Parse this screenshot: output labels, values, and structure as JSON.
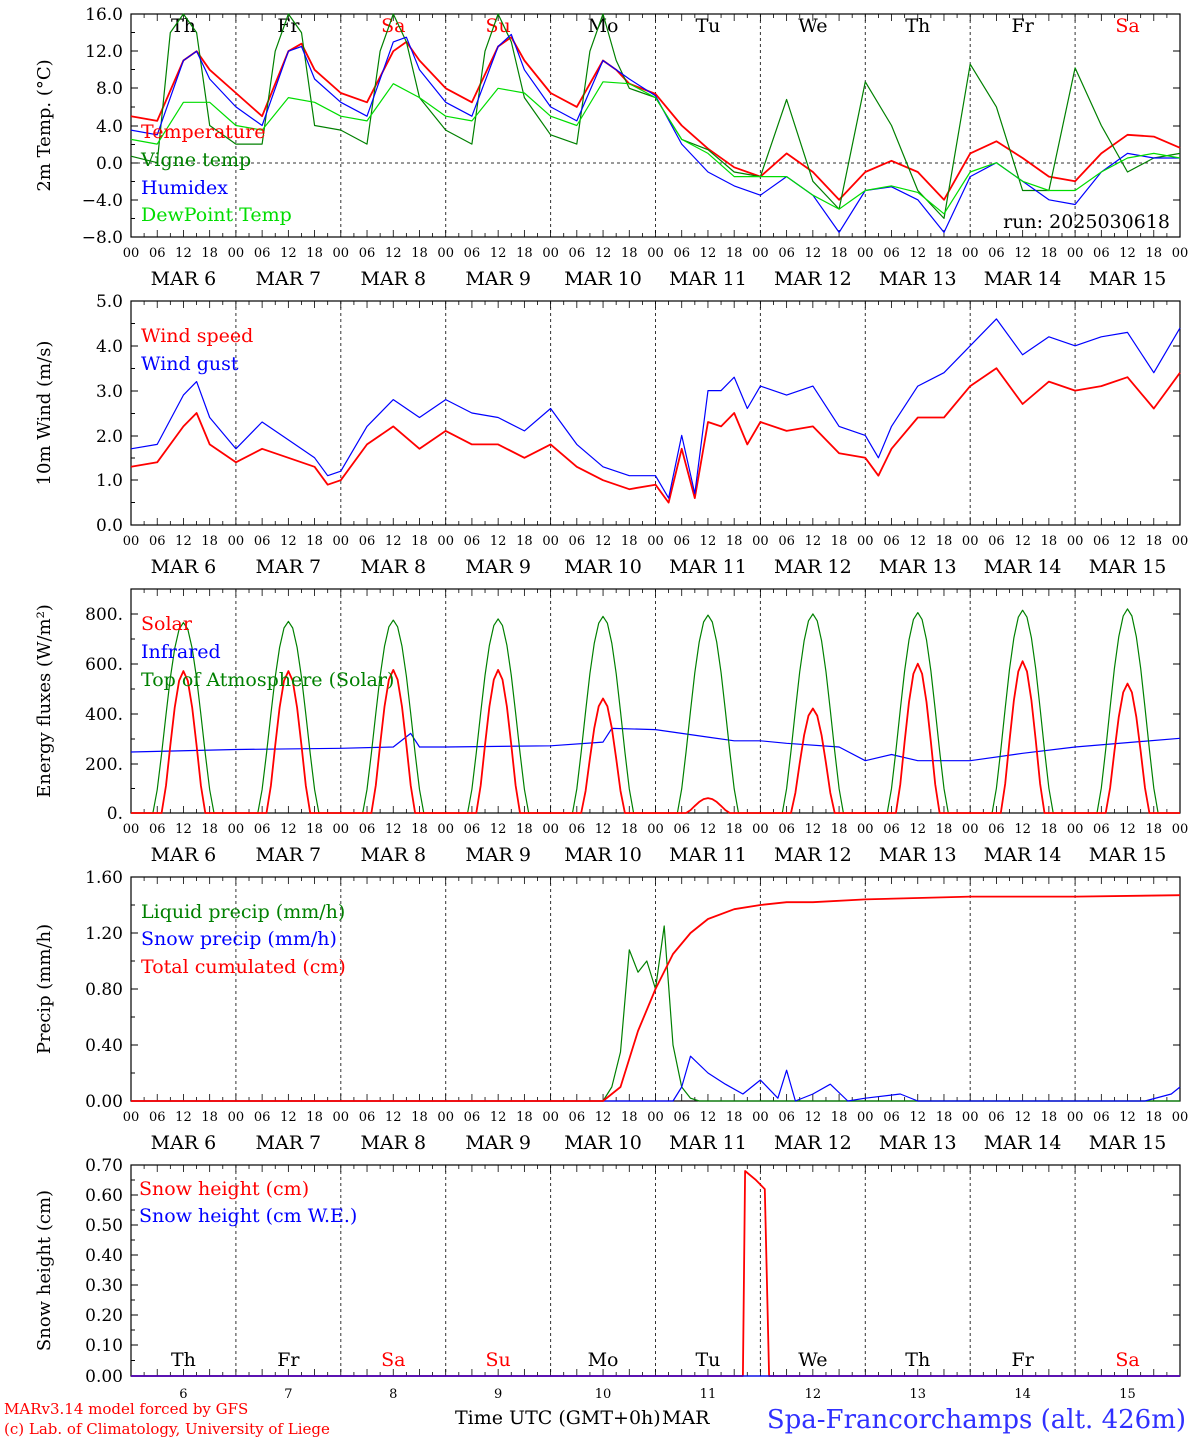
{
  "footer": {
    "credit_line1": "MARv3.14 model forced by GFS",
    "credit_line2": "(c) Lab. of Climatology, University of Liege",
    "time_axis_label": "Time UTC (GMT+0h)",
    "month_label": "MAR",
    "station": "Spa-Francorchamps (alt. 426m)"
  },
  "colors": {
    "red": "#ff0000",
    "green": "#008000",
    "blue": "#0000ff",
    "lightgreen": "#00dd00"
  },
  "x_axis": {
    "hour_ticks": [
      "00",
      "06",
      "12",
      "18"
    ],
    "date_labels": [
      "MAR  6",
      "MAR  7",
      "MAR  8",
      "MAR  9",
      "MAR 10",
      "MAR 11",
      "MAR 12",
      "MAR 13",
      "MAR 14",
      "MAR 15"
    ],
    "weekdays": [
      "Th",
      "Fr",
      "Sa",
      "Su",
      "Mo",
      "Tu",
      "We",
      "Th",
      "Fr",
      "Sa"
    ],
    "weekend_days": [
      2,
      3,
      9
    ],
    "day_numbers": [
      "6",
      "7",
      "8",
      "9",
      "10",
      "11",
      "12",
      "13",
      "14",
      "15"
    ]
  },
  "chart_data": [
    {
      "type": "line",
      "ylabel": "2m Temp. (°C)",
      "ylim": [
        -8,
        16
      ],
      "y_ticks": [
        "16.0",
        "12.0",
        "8.0",
        "4.0",
        "0.0",
        "−4.0",
        "−8.0"
      ],
      "run_label": "run: 2025030618",
      "x_unit": "hours since MAR 6 00 UTC",
      "series": [
        {
          "name": "Temperature",
          "color": "red",
          "x": [
            0,
            6,
            12,
            15,
            18,
            24,
            30,
            36,
            39,
            42,
            48,
            54,
            60,
            63,
            66,
            72,
            78,
            84,
            87,
            90,
            96,
            102,
            108,
            111,
            114,
            120,
            126,
            132,
            138,
            144,
            150,
            156,
            162,
            168,
            174,
            180,
            186,
            192,
            198,
            204,
            210,
            216,
            222,
            228,
            234,
            240
          ],
          "y": [
            5,
            4.5,
            11,
            12,
            10,
            7.5,
            5,
            12,
            12.8,
            10,
            7.5,
            6.5,
            12,
            13,
            11,
            8,
            6.5,
            12.5,
            13.5,
            11,
            7.5,
            6,
            11,
            10,
            8.5,
            7.4,
            4,
            1.5,
            -0.5,
            -1.5,
            1,
            -1,
            -4,
            -1,
            0.2,
            -1,
            -4,
            1,
            2.3,
            0.5,
            -1.5,
            -2,
            1,
            3,
            2.8,
            1.6
          ]
        },
        {
          "name": "Vigne temp",
          "color": "green",
          "x": [
            0,
            6,
            9,
            12,
            15,
            18,
            24,
            30,
            33,
            36,
            39,
            42,
            48,
            54,
            57,
            60,
            63,
            66,
            72,
            78,
            81,
            84,
            87,
            90,
            96,
            102,
            105,
            108,
            111,
            114,
            120,
            126,
            132,
            138,
            144,
            150,
            156,
            162,
            168,
            174,
            180,
            186,
            192,
            198,
            204,
            210,
            216,
            222,
            228,
            234,
            240
          ],
          "y": [
            0.7,
            0,
            14,
            16,
            14,
            4,
            2,
            2,
            12,
            16,
            14,
            4,
            3.5,
            2,
            12,
            16,
            13,
            7,
            3.5,
            2,
            12,
            16,
            13,
            7,
            3,
            2,
            12,
            16,
            11,
            8,
            7,
            2.5,
            1.4,
            -1,
            -1.5,
            6.8,
            -2,
            -5,
            8.7,
            4,
            -3,
            -6,
            10.6,
            6,
            -3,
            -3,
            10.2,
            4,
            -1,
            0.5,
            1
          ]
        },
        {
          "name": "Humidex",
          "color": "blue",
          "x": [
            0,
            6,
            12,
            15,
            18,
            24,
            30,
            36,
            39,
            42,
            48,
            54,
            60,
            63,
            66,
            72,
            78,
            84,
            87,
            90,
            96,
            102,
            108,
            111,
            114,
            120,
            126,
            132,
            138,
            144,
            150,
            156,
            162,
            168,
            174,
            180,
            186,
            192,
            198,
            204,
            210,
            216,
            222,
            228,
            234,
            240
          ],
          "y": [
            3.5,
            3,
            11,
            12,
            9,
            6,
            4,
            12,
            12.5,
            9,
            6.5,
            5,
            13,
            13.5,
            10,
            6.5,
            5,
            12.5,
            13.8,
            10,
            6,
            4.5,
            11,
            10,
            9,
            7.2,
            2,
            -1,
            -2.5,
            -3.5,
            -1.5,
            -3.5,
            -7.5,
            -3,
            -2.6,
            -4,
            -7.5,
            -1.5,
            0,
            -2,
            -4,
            -4.5,
            -1,
            1,
            0.5,
            0.5
          ]
        },
        {
          "name": "DewPoint Temp",
          "color": "lightgreen",
          "x": [
            0,
            6,
            12,
            18,
            24,
            30,
            36,
            42,
            48,
            54,
            60,
            66,
            72,
            78,
            84,
            90,
            96,
            102,
            108,
            114,
            120,
            126,
            132,
            138,
            144,
            150,
            156,
            162,
            168,
            174,
            180,
            186,
            192,
            198,
            204,
            210,
            216,
            222,
            228,
            234,
            240
          ],
          "y": [
            2.5,
            2,
            6.5,
            6.5,
            4,
            3.5,
            7,
            6.5,
            5,
            4.5,
            8.5,
            7,
            5,
            4.5,
            8,
            7.5,
            5,
            4,
            8.7,
            8.5,
            7,
            2.5,
            1,
            -1.5,
            -1.5,
            -1.5,
            -3.5,
            -5,
            -3,
            -2.5,
            -3.2,
            -5.5,
            -1,
            0,
            -2,
            -3,
            -3,
            -1,
            0.5,
            1,
            0.5
          ]
        }
      ]
    },
    {
      "type": "line",
      "ylabel": "10m Wind (m/s)",
      "ylim": [
        0,
        5
      ],
      "y_ticks": [
        "5.0",
        "4.0",
        "3.0",
        "2.0",
        "1.0",
        "0.0"
      ],
      "series": [
        {
          "name": "Wind speed",
          "color": "red",
          "x": [
            0,
            6,
            12,
            15,
            18,
            24,
            30,
            36,
            42,
            45,
            48,
            54,
            60,
            66,
            72,
            78,
            84,
            90,
            96,
            102,
            108,
            114,
            120,
            123,
            126,
            129,
            132,
            135,
            138,
            141,
            144,
            150,
            156,
            162,
            168,
            171,
            174,
            180,
            186,
            192,
            198,
            204,
            210,
            216,
            222,
            228,
            234,
            240
          ],
          "y": [
            1.3,
            1.4,
            2.2,
            2.5,
            1.8,
            1.4,
            1.7,
            1.5,
            1.3,
            0.9,
            1,
            1.8,
            2.2,
            1.7,
            2.1,
            1.8,
            1.8,
            1.5,
            1.8,
            1.3,
            1,
            0.8,
            0.9,
            0.5,
            1.7,
            0.6,
            2.3,
            2.2,
            2.5,
            1.8,
            2.3,
            2.1,
            2.2,
            1.6,
            1.5,
            1.1,
            1.7,
            2.4,
            2.4,
            3.1,
            3.5,
            2.7,
            3.2,
            3,
            3.1,
            3.3,
            2.6,
            3.4
          ]
        },
        {
          "name": "Wind gust",
          "color": "blue",
          "x": [
            0,
            6,
            12,
            15,
            18,
            24,
            30,
            36,
            42,
            45,
            48,
            54,
            60,
            66,
            72,
            78,
            84,
            90,
            96,
            102,
            108,
            114,
            120,
            123,
            126,
            129,
            132,
            135,
            138,
            141,
            144,
            150,
            156,
            162,
            168,
            171,
            174,
            180,
            186,
            192,
            198,
            204,
            210,
            216,
            222,
            228,
            234,
            240
          ],
          "y": [
            1.7,
            1.8,
            2.9,
            3.2,
            2.4,
            1.7,
            2.3,
            1.9,
            1.5,
            1.1,
            1.2,
            2.2,
            2.8,
            2.4,
            2.8,
            2.5,
            2.4,
            2.1,
            2.6,
            1.8,
            1.3,
            1.1,
            1.1,
            0.6,
            2,
            0.7,
            3,
            3,
            3.3,
            2.6,
            3.1,
            2.9,
            3.1,
            2.2,
            2,
            1.5,
            2.2,
            3.1,
            3.4,
            4,
            4.6,
            3.8,
            4.2,
            4,
            4.2,
            4.3,
            3.4,
            4.4
          ]
        }
      ]
    },
    {
      "type": "line",
      "ylabel": "Energy fluxes (W/m²)",
      "ylim": [
        0,
        900
      ],
      "y_ticks": [
        "800.",
        "600.",
        "400.",
        "200.",
        "0."
      ],
      "series": [
        {
          "name": "Solar",
          "color": "red",
          "peaks": [
            570,
            570,
            575,
            575,
            460,
            60,
            420,
            600,
            610,
            520
          ]
        },
        {
          "name": "Infrared",
          "color": "blue",
          "x": [
            0,
            24,
            48,
            60,
            64,
            66,
            72,
            96,
            108,
            110,
            120,
            132,
            138,
            144,
            150,
            162,
            168,
            174,
            180,
            192,
            204,
            216,
            240
          ],
          "y": [
            245,
            255,
            260,
            265,
            320,
            265,
            265,
            270,
            285,
            340,
            335,
            305,
            290,
            290,
            280,
            265,
            210,
            235,
            210,
            210,
            240,
            265,
            300
          ]
        },
        {
          "name": "Top of Atmosphere (Solar)",
          "color": "green",
          "peaks": [
            765,
            770,
            775,
            780,
            790,
            795,
            800,
            805,
            815,
            820
          ]
        }
      ]
    },
    {
      "type": "line",
      "ylabel": "Precip (mm/h)",
      "ylim": [
        0,
        1.6
      ],
      "y_ticks": [
        "1.60",
        "1.20",
        "0.80",
        "0.40",
        "0.00"
      ],
      "series": [
        {
          "name": "Liquid precip (mm/h)",
          "color": "green",
          "x": [
            0,
            108,
            110,
            112,
            114,
            116,
            118,
            120,
            122,
            124,
            126,
            128,
            130,
            132,
            240
          ],
          "y": [
            0,
            0,
            0.1,
            0.35,
            1.08,
            0.92,
            1.0,
            0.8,
            1.25,
            0.4,
            0.1,
            0.02,
            0,
            0,
            0
          ]
        },
        {
          "name": "Snow precip (mm/h)",
          "color": "blue",
          "x": [
            0,
            124,
            126,
            128,
            132,
            136,
            140,
            144,
            148,
            150,
            152,
            156,
            160,
            164,
            168,
            176,
            180,
            184,
            232,
            238,
            240
          ],
          "y": [
            0,
            0,
            0.1,
            0.32,
            0.2,
            0.12,
            0.05,
            0.15,
            0.02,
            0.22,
            0,
            0.05,
            0.12,
            0,
            0.02,
            0.05,
            0,
            0,
            0,
            0.05,
            0.1
          ]
        },
        {
          "name": "Total cumulated (cm)",
          "color": "red",
          "x": [
            0,
            108,
            112,
            116,
            120,
            124,
            128,
            132,
            138,
            144,
            150,
            156,
            168,
            180,
            192,
            216,
            240
          ],
          "y": [
            0,
            0,
            0.1,
            0.5,
            0.8,
            1.05,
            1.2,
            1.3,
            1.37,
            1.4,
            1.42,
            1.42,
            1.44,
            1.45,
            1.46,
            1.46,
            1.47
          ]
        }
      ]
    },
    {
      "type": "line",
      "ylabel": "Snow height (cm)",
      "ylim": [
        0,
        0.7
      ],
      "y_ticks": [
        "0.70",
        "0.60",
        "0.50",
        "0.40",
        "0.30",
        "0.20",
        "0.10",
        "0.00"
      ],
      "series": [
        {
          "name": "Snow height (cm)",
          "color": "red",
          "x": [
            0,
            140,
            140.5,
            143,
            145,
            146,
            240
          ],
          "y": [
            0,
            0,
            0.68,
            0.65,
            0.62,
            0,
            0
          ]
        },
        {
          "name": "Snow height (cm W.E.)",
          "color": "blue",
          "x": [
            0,
            240
          ],
          "y": [
            0,
            0
          ]
        }
      ]
    }
  ]
}
